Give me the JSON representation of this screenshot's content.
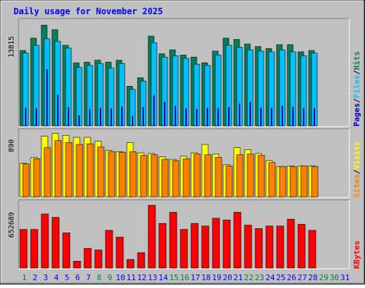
{
  "title": "Daily usage for November 2025",
  "colors": {
    "background": "#C0C0C0",
    "title": "#0000FF",
    "hits": "#00805C",
    "files": "#00C0FF",
    "pages": "#0000C0",
    "sites": "#FF8000",
    "visits": "#FFFF00",
    "kbytes": "#FF0000",
    "day_label": "#0000FF",
    "weekend_label": "#008040"
  },
  "chart_data": [
    {
      "type": "bar",
      "panel": "hits-files-pages",
      "categories": [
        "1",
        "2",
        "3",
        "4",
        "5",
        "6",
        "7",
        "8",
        "9",
        "10",
        "11",
        "12",
        "13",
        "14",
        "15",
        "16",
        "17",
        "18",
        "19",
        "20",
        "21",
        "22",
        "23",
        "24",
        "25",
        "26",
        "27",
        "28",
        "29",
        "30",
        "31"
      ],
      "ytick": "13815",
      "ylim": [
        0,
        16200
      ],
      "axis_label": [
        {
          "text": "Pages",
          "color_key": "pages"
        },
        {
          "text": "Files",
          "color_key": "files"
        },
        {
          "text": "Hits",
          "color_key": "hits"
        }
      ],
      "series": [
        {
          "key": "hits",
          "values": [
            11600,
            13500,
            15500,
            14800,
            12400,
            9700,
            9800,
            10100,
            9800,
            10100,
            6100,
            7400,
            13800,
            11100,
            11700,
            10900,
            10600,
            9700,
            11500,
            13500,
            13300,
            12600,
            12200,
            11900,
            12500,
            12500,
            11400,
            11600,
            null,
            null,
            null
          ]
        },
        {
          "key": "files",
          "values": [
            11200,
            12400,
            13400,
            13000,
            12000,
            9000,
            9300,
            9600,
            8900,
            9600,
            5600,
            6900,
            12800,
            10600,
            10800,
            10400,
            9500,
            9300,
            10900,
            12400,
            12100,
            11700,
            11500,
            11400,
            11700,
            11400,
            10800,
            11200,
            null,
            null,
            null
          ]
        },
        {
          "key": "pages",
          "values": [
            2800,
            2700,
            8700,
            4800,
            2900,
            1600,
            2600,
            2800,
            2700,
            3000,
            1500,
            2900,
            4700,
            3700,
            3100,
            2700,
            2600,
            2800,
            2800,
            2900,
            3400,
            3700,
            2800,
            2800,
            3100,
            2900,
            2700,
            2700,
            null,
            null,
            null
          ]
        }
      ]
    },
    {
      "type": "bar",
      "panel": "visits-sites",
      "categories": [
        "1",
        "2",
        "3",
        "4",
        "5",
        "6",
        "7",
        "8",
        "9",
        "10",
        "11",
        "12",
        "13",
        "14",
        "15",
        "16",
        "17",
        "18",
        "19",
        "20",
        "21",
        "22",
        "23",
        "24",
        "25",
        "26",
        "27",
        "28",
        "29",
        "30",
        "31"
      ],
      "ytick": "890",
      "ylim": [
        0,
        1020
      ],
      "axis_label": [
        {
          "text": "Sites",
          "color_key": "sites"
        },
        {
          "text": "Visits",
          "color_key": "visits"
        }
      ],
      "series": [
        {
          "key": "visits",
          "values": [
            520,
            610,
            940,
            980,
            950,
            920,
            920,
            860,
            720,
            700,
            840,
            680,
            670,
            620,
            580,
            630,
            680,
            810,
            660,
            500,
            760,
            730,
            670,
            560,
            470,
            480,
            480,
            480,
            null,
            null,
            null
          ]
        },
        {
          "key": "sites",
          "values": [
            510,
            590,
            760,
            870,
            840,
            810,
            820,
            770,
            700,
            690,
            700,
            640,
            650,
            580,
            560,
            590,
            660,
            650,
            610,
            480,
            650,
            660,
            640,
            530,
            470,
            470,
            480,
            470,
            null,
            null,
            null
          ]
        }
      ]
    },
    {
      "type": "bar",
      "panel": "kbytes",
      "categories": [
        "1",
        "2",
        "3",
        "4",
        "5",
        "6",
        "7",
        "8",
        "9",
        "10",
        "11",
        "12",
        "13",
        "14",
        "15",
        "16",
        "17",
        "18",
        "19",
        "20",
        "21",
        "22",
        "23",
        "24",
        "25",
        "26",
        "27",
        "28",
        "29",
        "30",
        "31"
      ],
      "ytick": "652689",
      "ylim": [
        0,
        770000
      ],
      "axis_label": [
        {
          "text": "KBytes",
          "color_key": "kbytes"
        }
      ],
      "series": [
        {
          "key": "kbytes",
          "values": [
            450000,
            450000,
            630000,
            590000,
            410000,
            80000,
            230000,
            210000,
            440000,
            360000,
            100000,
            180000,
            730000,
            520000,
            650000,
            450000,
            520000,
            490000,
            580000,
            560000,
            650000,
            500000,
            460000,
            490000,
            490000,
            570000,
            510000,
            440000,
            null,
            null,
            null
          ]
        }
      ]
    }
  ],
  "day_labels": {
    "weekend_days": [
      1,
      8,
      9,
      15,
      16,
      22,
      23,
      29,
      30
    ]
  }
}
